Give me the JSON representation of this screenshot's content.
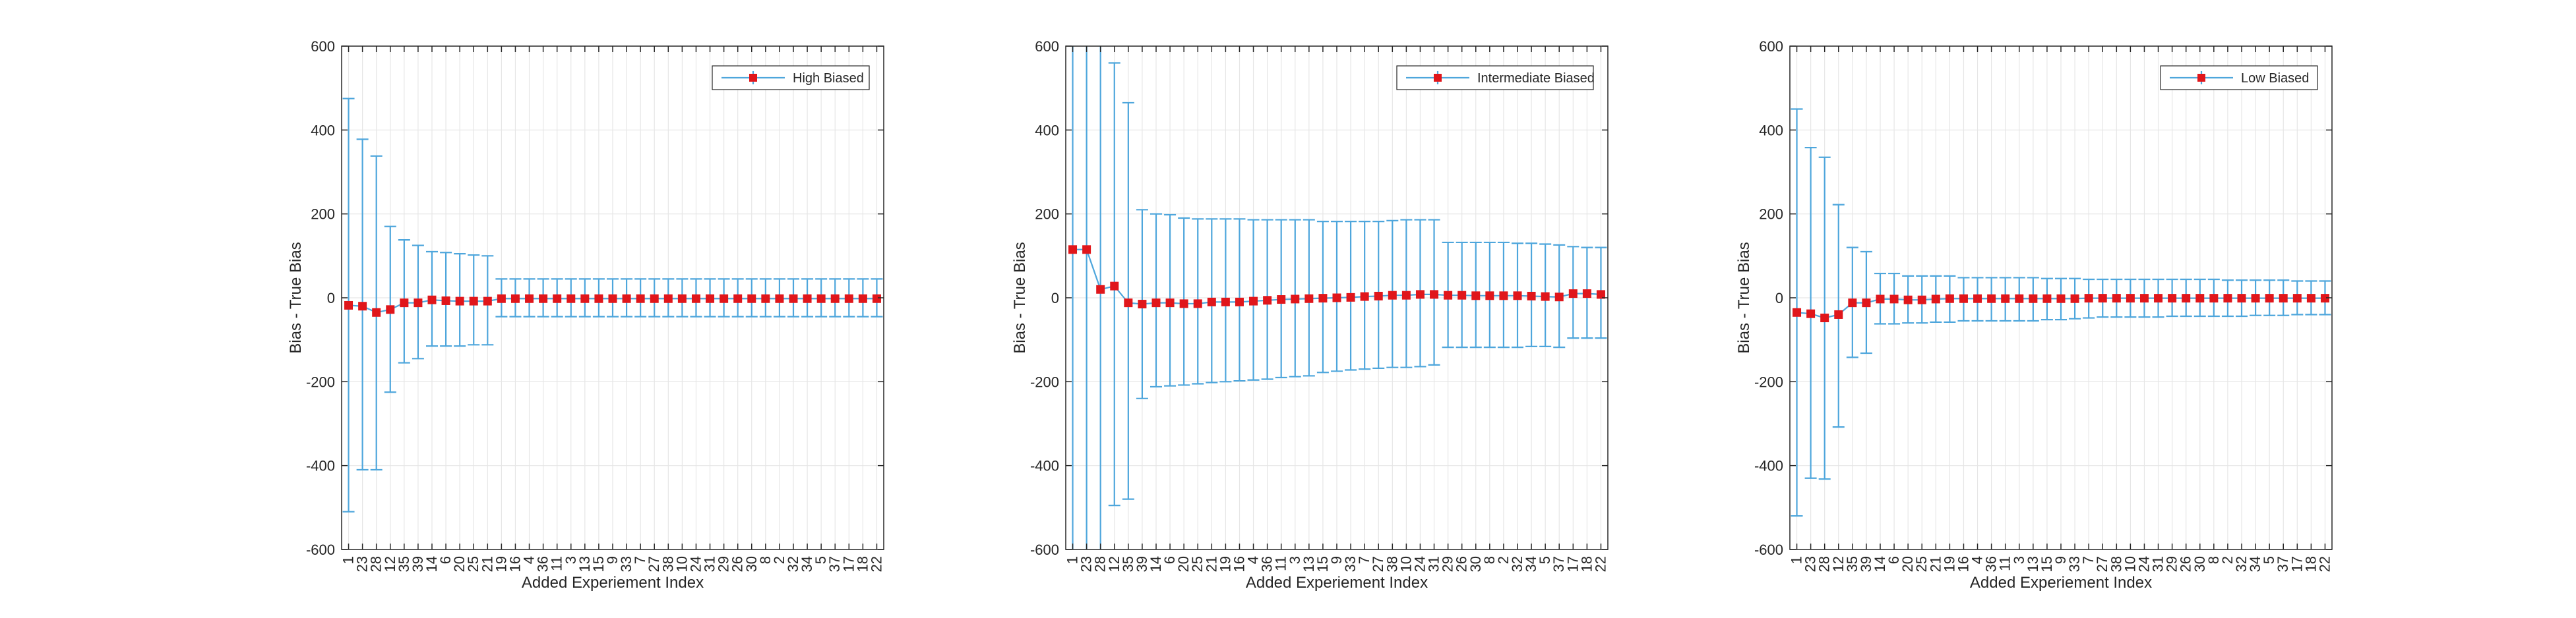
{
  "figure": {
    "colors": {
      "errorbar": "#4ea6dc",
      "marker": "#e0161b",
      "grid": "#e6e6e6",
      "axis": "#262626"
    }
  },
  "chart_data": [
    {
      "type": "errorbar",
      "categories": [
        "1",
        "23",
        "28",
        "12",
        "35",
        "39",
        "14",
        "6",
        "20",
        "25",
        "21",
        "19",
        "16",
        "4",
        "36",
        "11",
        "3",
        "13",
        "15",
        "9",
        "33",
        "7",
        "27",
        "38",
        "10",
        "24",
        "31",
        "29",
        "26",
        "30",
        "8",
        "2",
        "32",
        "34",
        "5",
        "37",
        "17",
        "18",
        "22"
      ],
      "values": [
        -18,
        -20,
        -35,
        -28,
        -12,
        -12,
        -5,
        -7,
        -8,
        -8,
        -8,
        -2,
        -2,
        -2,
        -2,
        -2,
        -2,
        -2,
        -2,
        -2,
        -2,
        -2,
        -2,
        -2,
        -2,
        -2,
        -2,
        -2,
        -2,
        -2,
        -2,
        -2,
        -2,
        -2,
        -2,
        -2,
        -2,
        -2,
        -2
      ],
      "upper": [
        475,
        378,
        338,
        170,
        138,
        125,
        110,
        108,
        105,
        102,
        100,
        45,
        45,
        45,
        45,
        45,
        45,
        45,
        45,
        45,
        45,
        45,
        45,
        45,
        45,
        45,
        45,
        45,
        45,
        45,
        45,
        45,
        45,
        45,
        45,
        45,
        45,
        45,
        45
      ],
      "lower": [
        -510,
        -410,
        -410,
        -225,
        -155,
        -145,
        -115,
        -115,
        -115,
        -112,
        -112,
        -45,
        -45,
        -45,
        -45,
        -45,
        -45,
        -45,
        -45,
        -45,
        -45,
        -45,
        -45,
        -45,
        -45,
        -45,
        -45,
        -45,
        -45,
        -45,
        -45,
        -45,
        -45,
        -45,
        -45,
        -45,
        -45,
        -45,
        -45
      ],
      "xlabel": "Added Experiement Index",
      "ylabel": "Bias - True Bias",
      "ylim": [
        -600,
        600
      ],
      "yticks": [
        "-600",
        "-400",
        "-200",
        "0",
        "200",
        "400",
        "600"
      ],
      "legend": "High Biased",
      "legend_position": "top-right",
      "grid": true
    },
    {
      "type": "errorbar",
      "categories": [
        "1",
        "23",
        "28",
        "12",
        "35",
        "39",
        "14",
        "6",
        "20",
        "25",
        "21",
        "19",
        "16",
        "4",
        "36",
        "11",
        "3",
        "13",
        "15",
        "9",
        "33",
        "7",
        "27",
        "38",
        "10",
        "24",
        "31",
        "29",
        "26",
        "30",
        "8",
        "2",
        "32",
        "34",
        "5",
        "37",
        "17",
        "18",
        "22"
      ],
      "values": [
        115,
        115,
        20,
        28,
        -12,
        -15,
        -12,
        -12,
        -14,
        -14,
        -10,
        -10,
        -10,
        -8,
        -6,
        -4,
        -3,
        -2,
        -1,
        0,
        1,
        3,
        4,
        6,
        6,
        8,
        8,
        6,
        6,
        5,
        5,
        5,
        5,
        4,
        3,
        2,
        10,
        10,
        8
      ],
      "upper": [
        600,
        600,
        600,
        560,
        465,
        210,
        200,
        198,
        190,
        188,
        188,
        188,
        188,
        186,
        186,
        186,
        186,
        186,
        182,
        182,
        182,
        182,
        182,
        184,
        186,
        186,
        186,
        132,
        132,
        132,
        132,
        132,
        130,
        130,
        128,
        126,
        122,
        120,
        120
      ],
      "lower": [
        -600,
        -600,
        -600,
        -495,
        -480,
        -240,
        -212,
        -210,
        -208,
        -205,
        -202,
        -200,
        -198,
        -196,
        -194,
        -190,
        -188,
        -186,
        -178,
        -175,
        -172,
        -170,
        -168,
        -166,
        -166,
        -164,
        -160,
        -118,
        -118,
        -118,
        -118,
        -118,
        -118,
        -116,
        -116,
        -118,
        -96,
        -96,
        -96
      ],
      "xlabel": "Added Experiement Index",
      "ylabel": "Bias - True Bias",
      "ylim": [
        -600,
        600
      ],
      "yticks": [
        "-600",
        "-400",
        "-200",
        "0",
        "200",
        "400",
        "600"
      ],
      "legend": "Intermediate Biased",
      "legend_position": "top-right",
      "grid": true
    },
    {
      "type": "errorbar",
      "categories": [
        "1",
        "23",
        "28",
        "12",
        "35",
        "39",
        "14",
        "6",
        "20",
        "25",
        "21",
        "19",
        "16",
        "4",
        "36",
        "11",
        "3",
        "13",
        "15",
        "9",
        "33",
        "7",
        "27",
        "38",
        "10",
        "24",
        "31",
        "29",
        "26",
        "30",
        "8",
        "2",
        "32",
        "34",
        "5",
        "37",
        "17",
        "18",
        "22"
      ],
      "values": [
        -35,
        -38,
        -48,
        -40,
        -12,
        -12,
        -3,
        -3,
        -5,
        -5,
        -3,
        -2,
        -2,
        -2,
        -2,
        -2,
        -2,
        -2,
        -2,
        -2,
        -2,
        -1,
        -1,
        -1,
        -1,
        -1,
        -1,
        -1,
        -1,
        -1,
        -1,
        -1,
        -1,
        -1,
        -1,
        -1,
        -1,
        -1,
        -1
      ],
      "upper": [
        450,
        358,
        335,
        222,
        120,
        110,
        58,
        58,
        52,
        52,
        52,
        52,
        48,
        48,
        48,
        48,
        48,
        48,
        46,
        46,
        46,
        44,
        44,
        44,
        44,
        44,
        44,
        44,
        44,
        44,
        44,
        42,
        42,
        42,
        42,
        42,
        40,
        40,
        40
      ],
      "lower": [
        -520,
        -430,
        -432,
        -308,
        -142,
        -132,
        -62,
        -62,
        -60,
        -60,
        -58,
        -58,
        -55,
        -55,
        -55,
        -55,
        -55,
        -55,
        -52,
        -52,
        -50,
        -48,
        -46,
        -46,
        -46,
        -46,
        -46,
        -44,
        -44,
        -44,
        -44,
        -44,
        -44,
        -42,
        -42,
        -42,
        -40,
        -40,
        -40
      ],
      "xlabel": "Added Experiement Index",
      "ylabel": "Bias - True Bias",
      "ylim": [
        -600,
        600
      ],
      "yticks": [
        "-600",
        "-400",
        "-200",
        "0",
        "200",
        "400",
        "600"
      ],
      "legend": "Low Biased",
      "legend_position": "top-right",
      "grid": true
    }
  ]
}
